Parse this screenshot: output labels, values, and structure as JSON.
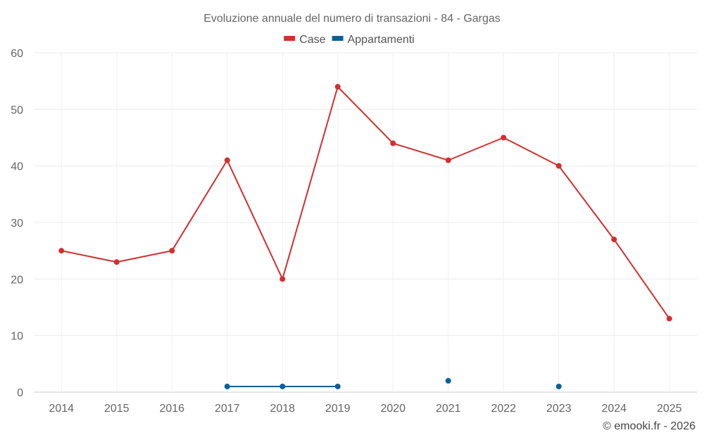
{
  "chart_data": {
    "type": "line",
    "title": "Evoluzione annuale del numero di transazioni - 84 - Gargas",
    "categories": [
      "2014",
      "2015",
      "2016",
      "2017",
      "2018",
      "2019",
      "2020",
      "2021",
      "2022",
      "2023",
      "2024",
      "2025"
    ],
    "series": [
      {
        "name": "Case",
        "color": "#d32f2f",
        "values": [
          25,
          23,
          25,
          41,
          20,
          54,
          44,
          41,
          45,
          40,
          27,
          13
        ]
      },
      {
        "name": "Appartamenti",
        "color": "#0d5f96",
        "values": [
          null,
          null,
          null,
          1,
          1,
          1,
          null,
          2,
          null,
          1,
          null,
          null
        ]
      }
    ],
    "ylim": [
      0,
      60
    ],
    "yticks": [
      0,
      10,
      20,
      30,
      40,
      50,
      60
    ],
    "grid": true,
    "legend": "top-center"
  },
  "credit": "© emooki.fr - 2026"
}
